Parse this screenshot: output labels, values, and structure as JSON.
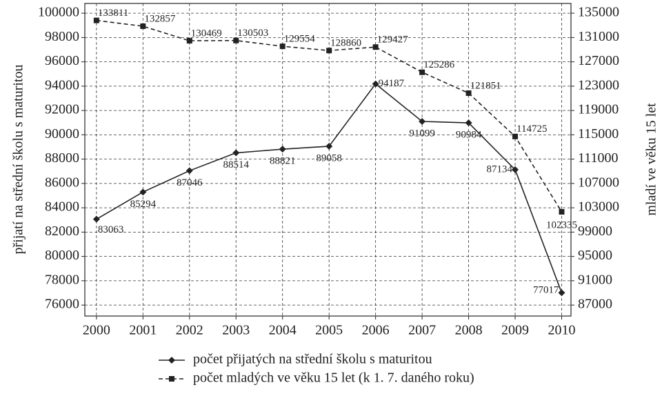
{
  "chart_data": {
    "type": "line",
    "x": [
      2000,
      2001,
      2002,
      2003,
      2004,
      2005,
      2006,
      2007,
      2008,
      2009,
      2010
    ],
    "xlim": [
      1999.75,
      2010.2
    ],
    "xticks": [
      2000,
      2001,
      2002,
      2003,
      2004,
      2005,
      2006,
      2007,
      2008,
      2009,
      2010
    ],
    "ylim": [
      75100,
      100800
    ],
    "yticks": [
      76000,
      78000,
      80000,
      82000,
      84000,
      86000,
      88000,
      90000,
      92000,
      94000,
      96000,
      98000,
      100000
    ],
    "y2lim": [
      85200,
      136600
    ],
    "y2ticks": [
      87000,
      91000,
      95000,
      99000,
      103000,
      107000,
      111000,
      115000,
      119000,
      123000,
      127000,
      131000,
      135000
    ],
    "ylabel": "přijatí na střední školu s maturitou",
    "y2label": "mladí ve věku 15 let",
    "grid": true,
    "legend": "bottom",
    "series": [
      {
        "name": "počet přijatých na střední školu s maturitou",
        "color": "#222222",
        "marker": "diamond",
        "dash": "solid",
        "values": [
          83063,
          85294,
          87046,
          88514,
          88821,
          89058,
          94187,
          91099,
          90984,
          87134,
          77017
        ]
      },
      {
        "name": "počet mladých ve věku 15 let (k 1. 7. daného roku)",
        "color": "#222222",
        "marker": "square",
        "dash": "dashed",
        "axis": "y2",
        "values": [
          133811,
          132857,
          130469,
          130503,
          129554,
          128860,
          129427,
          125286,
          121851,
          114725,
          102335
        ]
      }
    ]
  }
}
